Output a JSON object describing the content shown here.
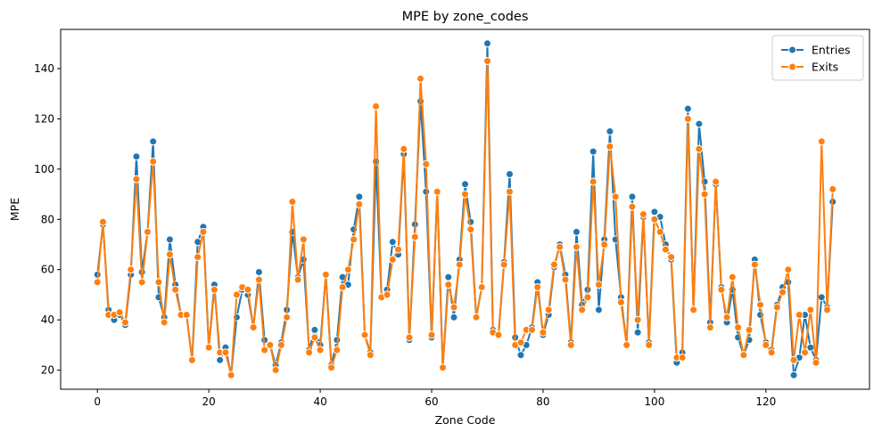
{
  "chart_data": {
    "type": "line",
    "title": "MPE by zone_codes",
    "xlabel": "Zone Code",
    "ylabel": "MPE",
    "xlim": [
      -6.6,
      138.6
    ],
    "ylim": [
      12.4,
      155.6
    ],
    "xticks": [
      0,
      20,
      40,
      60,
      80,
      100,
      120
    ],
    "yticks": [
      20,
      40,
      60,
      80,
      100,
      120,
      140
    ],
    "grid": false,
    "legend_position": "top-right",
    "x": [
      0,
      1,
      2,
      3,
      4,
      5,
      6,
      7,
      8,
      9,
      10,
      11,
      12,
      13,
      14,
      15,
      16,
      17,
      18,
      19,
      20,
      21,
      22,
      23,
      24,
      25,
      26,
      27,
      28,
      29,
      30,
      31,
      32,
      33,
      34,
      35,
      36,
      37,
      38,
      39,
      40,
      41,
      42,
      43,
      44,
      45,
      46,
      47,
      48,
      49,
      50,
      51,
      52,
      53,
      54,
      55,
      56,
      57,
      58,
      59,
      60,
      61,
      62,
      63,
      64,
      65,
      66,
      67,
      68,
      69,
      70,
      71,
      72,
      73,
      74,
      75,
      76,
      77,
      78,
      79,
      80,
      81,
      82,
      83,
      84,
      85,
      86,
      87,
      88,
      89,
      90,
      91,
      92,
      93,
      94,
      95,
      96,
      97,
      98,
      99,
      100,
      101,
      102,
      103,
      104,
      105,
      106,
      107,
      108,
      109,
      110,
      111,
      112,
      113,
      114,
      115,
      116,
      117,
      118,
      119,
      120,
      121,
      122,
      123,
      124,
      125,
      126,
      127,
      128,
      129,
      130,
      131,
      132
    ],
    "series": [
      {
        "name": "Entries",
        "color": "#1f77b4",
        "values": [
          58,
          78,
          44,
          40,
          42,
          38,
          58,
          105,
          59,
          75,
          111,
          49,
          41,
          72,
          54,
          42,
          42,
          24,
          71,
          77,
          29,
          54,
          24,
          29,
          18,
          41,
          52,
          50,
          37,
          59,
          32,
          30,
          22,
          31,
          44,
          75,
          57,
          64,
          28,
          36,
          30,
          58,
          22,
          32,
          57,
          54,
          76,
          89,
          34,
          27,
          103,
          49,
          52,
          71,
          66,
          106,
          32,
          78,
          127,
          91,
          33,
          91,
          21,
          57,
          41,
          64,
          94,
          79,
          41,
          53,
          150,
          36,
          34,
          63,
          98,
          33,
          26,
          30,
          37,
          55,
          34,
          42,
          61,
          70,
          58,
          31,
          75,
          46,
          52,
          107,
          44,
          72,
          115,
          72,
          49,
          30,
          89,
          35,
          81,
          31,
          83,
          81,
          70,
          64,
          23,
          27,
          124,
          44,
          118,
          95,
          39,
          94,
          53,
          39,
          52,
          33,
          26,
          32,
          64,
          42,
          31,
          28,
          46,
          53,
          55,
          18,
          25,
          42,
          29,
          24,
          49,
          45,
          87
        ]
      },
      {
        "name": "Exits",
        "color": "#ff7f0e",
        "values": [
          55,
          79,
          42,
          42,
          43,
          39,
          60,
          96,
          55,
          75,
          103,
          55,
          39,
          66,
          52,
          42,
          42,
          24,
          65,
          75,
          29,
          52,
          27,
          27,
          18,
          50,
          53,
          52,
          37,
          56,
          28,
          30,
          20,
          30,
          41,
          87,
          56,
          72,
          27,
          33,
          28,
          58,
          21,
          28,
          53,
          60,
          72,
          86,
          34,
          26,
          125,
          49,
          50,
          64,
          68,
          108,
          33,
          73,
          136,
          102,
          34,
          91,
          21,
          54,
          45,
          62,
          90,
          76,
          41,
          53,
          143,
          35,
          34,
          62,
          91,
          30,
          31,
          36,
          36,
          53,
          35,
          44,
          62,
          69,
          56,
          30,
          69,
          44,
          49,
          95,
          54,
          70,
          109,
          89,
          47,
          30,
          85,
          40,
          82,
          30,
          80,
          75,
          68,
          65,
          25,
          25,
          120,
          44,
          108,
          90,
          37,
          95,
          52,
          41,
          57,
          37,
          26,
          36,
          62,
          46,
          30,
          27,
          45,
          51,
          60,
          24,
          42,
          27,
          44,
          23,
          111,
          44,
          92
        ]
      }
    ]
  }
}
